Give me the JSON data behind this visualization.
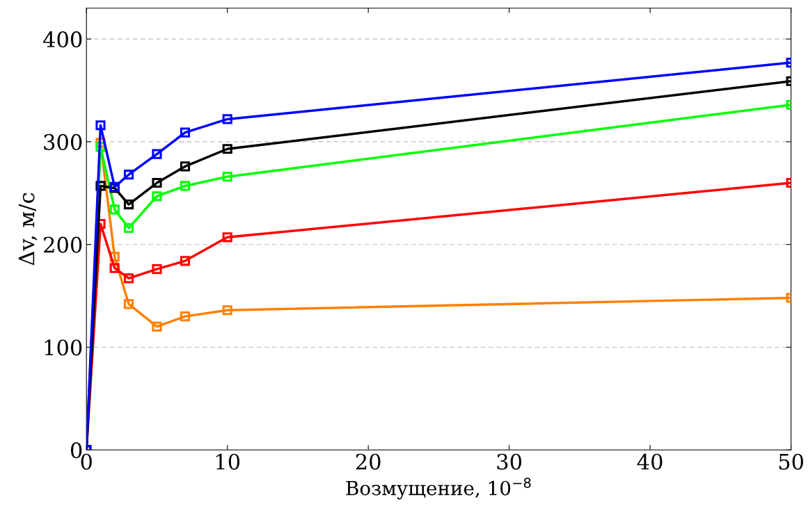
{
  "chart_data": {
    "type": "line",
    "xlabel": "Возмущение, 10$^{−8}$",
    "ylabel": "Δv, м/с",
    "xlim": [
      0,
      50
    ],
    "ylim": [
      0,
      430
    ],
    "xticks": [
      0,
      10,
      20,
      30,
      40,
      50
    ],
    "yticks": [
      0,
      100,
      200,
      300,
      400
    ],
    "grid": "y",
    "marker": "square",
    "line_style": "solid",
    "series": [
      {
        "color": "#ff8000",
        "x": [
          0,
          1,
          2,
          3,
          5,
          7,
          10,
          50
        ],
        "values": [
          0,
          299,
          188,
          142,
          120,
          130,
          136,
          148
        ]
      },
      {
        "color": "#ff0000",
        "x": [
          0,
          1,
          2,
          3,
          5,
          7,
          10,
          50
        ],
        "values": [
          0,
          220,
          177,
          167,
          176,
          184,
          207,
          260
        ]
      },
      {
        "color": "#00ff00",
        "x": [
          0,
          1,
          2,
          3,
          5,
          7,
          10,
          50
        ],
        "values": [
          0,
          295,
          234,
          216,
          247,
          257,
          266,
          336
        ]
      },
      {
        "color": "#000000",
        "x": [
          0,
          1,
          2,
          3,
          5,
          7,
          10,
          50
        ],
        "values": [
          0,
          257,
          255,
          239,
          260,
          276,
          293,
          359
        ]
      },
      {
        "color": "#0000ff",
        "x": [
          0,
          1,
          2,
          3,
          5,
          7,
          10,
          50
        ],
        "values": [
          0,
          316,
          256,
          268,
          288,
          309,
          322,
          377
        ]
      }
    ]
  }
}
